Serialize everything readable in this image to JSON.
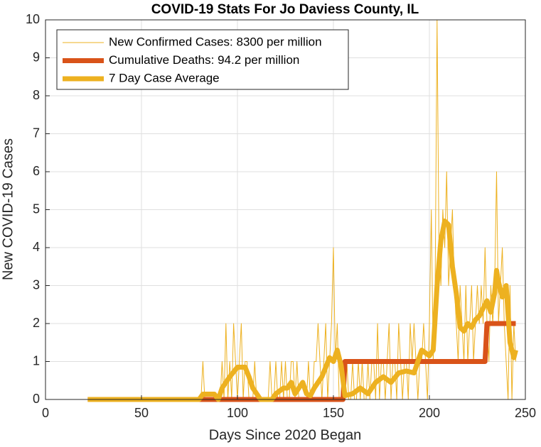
{
  "chart_data": {
    "type": "line",
    "title": "COVID-19 Stats For Jo Daviess County, IL",
    "xlabel": "Days Since 2020 Began",
    "ylabel": "New COVID-19 Cases",
    "xlim": [
      0,
      250
    ],
    "xticks": [
      0,
      50,
      100,
      150,
      200,
      250
    ],
    "ylim": [
      0,
      10
    ],
    "yticks": [
      0,
      1,
      2,
      3,
      4,
      5,
      6,
      7,
      8,
      9,
      10
    ],
    "grid": true,
    "legend": "upper-left",
    "x": [
      22,
      23,
      24,
      25,
      26,
      27,
      28,
      29,
      30,
      31,
      32,
      33,
      34,
      35,
      36,
      37,
      38,
      39,
      40,
      41,
      42,
      43,
      44,
      45,
      46,
      47,
      48,
      49,
      50,
      51,
      52,
      53,
      54,
      55,
      56,
      57,
      58,
      59,
      60,
      61,
      62,
      63,
      64,
      65,
      66,
      67,
      68,
      69,
      70,
      71,
      72,
      73,
      74,
      75,
      76,
      77,
      78,
      79,
      80,
      81,
      82,
      83,
      84,
      85,
      86,
      87,
      88,
      89,
      90,
      91,
      92,
      93,
      94,
      95,
      96,
      97,
      98,
      99,
      100,
      101,
      102,
      103,
      104,
      105,
      106,
      107,
      108,
      109,
      110,
      111,
      112,
      113,
      114,
      115,
      116,
      117,
      118,
      119,
      120,
      121,
      122,
      123,
      124,
      125,
      126,
      127,
      128,
      129,
      130,
      131,
      132,
      133,
      134,
      135,
      136,
      137,
      138,
      139,
      140,
      141,
      142,
      143,
      144,
      145,
      146,
      147,
      148,
      149,
      150,
      151,
      152,
      153,
      154,
      155,
      156,
      157,
      158,
      159,
      160,
      161,
      162,
      163,
      164,
      165,
      166,
      167,
      168,
      169,
      170,
      171,
      172,
      173,
      174,
      175,
      176,
      177,
      178,
      179,
      180,
      181,
      182,
      183,
      184,
      185,
      186,
      187,
      188,
      189,
      190,
      191,
      192,
      193,
      194,
      195,
      196,
      197,
      198,
      199,
      200,
      201,
      202,
      203,
      204,
      205,
      206,
      207,
      208,
      209,
      210,
      211,
      212,
      213,
      214,
      215,
      216,
      217,
      218,
      219,
      220,
      221,
      222,
      223,
      224,
      225,
      226,
      227,
      228,
      229,
      230,
      231,
      232,
      233,
      234,
      235,
      236,
      237,
      238,
      239,
      240,
      241,
      242,
      243,
      244,
      245
    ],
    "series": [
      {
        "name": "New Confirmed Cases: 8300 per million",
        "color": "#EDB120",
        "width": 1,
        "values": [
          0,
          0,
          0,
          0,
          0,
          0,
          0,
          0,
          0,
          0,
          0,
          0,
          0,
          0,
          0,
          0,
          0,
          0,
          0,
          0,
          0,
          0,
          0,
          0,
          0,
          0,
          0,
          0,
          0,
          0,
          0,
          0,
          0,
          0,
          0,
          0,
          0,
          0,
          0,
          0,
          0,
          0,
          0,
          0,
          0,
          0,
          0,
          0,
          0,
          0,
          0,
          0,
          0,
          0,
          0,
          0,
          0,
          0,
          0,
          0,
          1,
          0,
          0,
          0,
          0,
          0,
          0,
          0,
          0,
          0,
          1,
          0,
          2,
          0,
          1,
          0,
          2,
          1,
          0,
          1,
          2,
          0,
          1,
          1,
          0,
          0,
          0,
          1,
          0,
          0,
          0,
          0,
          0,
          0,
          0,
          1,
          0,
          0,
          1,
          0,
          0,
          1,
          0,
          1,
          0,
          0,
          1,
          1,
          0,
          1,
          0,
          0,
          0,
          0,
          0,
          1,
          0,
          0,
          1,
          1,
          2,
          1,
          0,
          1,
          2,
          0,
          1,
          2,
          4,
          1,
          2,
          0,
          0,
          0,
          0,
          1,
          0,
          0,
          1,
          0,
          0,
          1,
          0,
          1,
          0,
          0,
          1,
          0,
          1,
          1,
          0,
          2,
          0,
          1,
          1,
          0,
          1,
          2,
          0,
          1,
          1,
          0,
          2,
          1,
          0,
          1,
          1,
          0,
          2,
          1,
          2,
          1,
          0,
          1,
          1,
          2,
          1,
          0,
          2,
          5,
          1,
          3,
          10,
          4,
          3,
          5,
          4,
          6,
          3,
          4,
          5,
          3,
          2,
          1,
          3,
          2,
          1,
          3,
          1,
          2,
          3,
          1,
          2,
          3,
          2,
          3,
          2,
          4,
          2,
          1,
          3,
          2,
          3,
          6,
          2,
          3,
          4,
          2,
          1,
          0,
          3,
          0,
          2,
          1
        ]
      },
      {
        "name": "Cumulative Deaths: 94.2 per million",
        "color": "#D95319",
        "width": 7,
        "x": [
          22,
          155,
          156,
          229,
          230,
          245
        ],
        "values": [
          0,
          0,
          1,
          1,
          2,
          2
        ]
      },
      {
        "name": "7 Day Case Average",
        "color": "#EDB120",
        "width": 7,
        "x": [
          22,
          80,
          82,
          88,
          90,
          92,
          96,
          100,
          104,
          106,
          108,
          110,
          112,
          118,
          120,
          124,
          126,
          128,
          130,
          132,
          134,
          136,
          138,
          140,
          142,
          144,
          146,
          148,
          150,
          152,
          154,
          156,
          160,
          164,
          168,
          172,
          176,
          180,
          184,
          188,
          192,
          196,
          200,
          202,
          204,
          206,
          208,
          210,
          212,
          214,
          216,
          218,
          220,
          222,
          224,
          226,
          228,
          230,
          232,
          234,
          235,
          236,
          238,
          240,
          242,
          244,
          245
        ],
        "values": [
          0,
          0,
          0.14,
          0.14,
          0,
          0.3,
          0.6,
          0.85,
          0.85,
          0.6,
          0.3,
          0.15,
          0,
          0,
          0.15,
          0.3,
          0.3,
          0.45,
          0.15,
          0.3,
          0.45,
          0.15,
          0.1,
          0.3,
          0.45,
          0.6,
          0.85,
          1.1,
          1,
          1.3,
          0.9,
          0.1,
          0.15,
          0.3,
          0.15,
          0.45,
          0.6,
          0.45,
          0.7,
          0.75,
          0.7,
          1.3,
          1.15,
          1.3,
          3,
          4.2,
          4.7,
          4.6,
          3.5,
          2.8,
          1.9,
          1.8,
          2,
          1.9,
          2.1,
          2.2,
          2.4,
          2.6,
          2.3,
          2.8,
          3.4,
          3.1,
          2.7,
          3,
          1.5,
          1.1,
          1.3
        ]
      }
    ]
  }
}
